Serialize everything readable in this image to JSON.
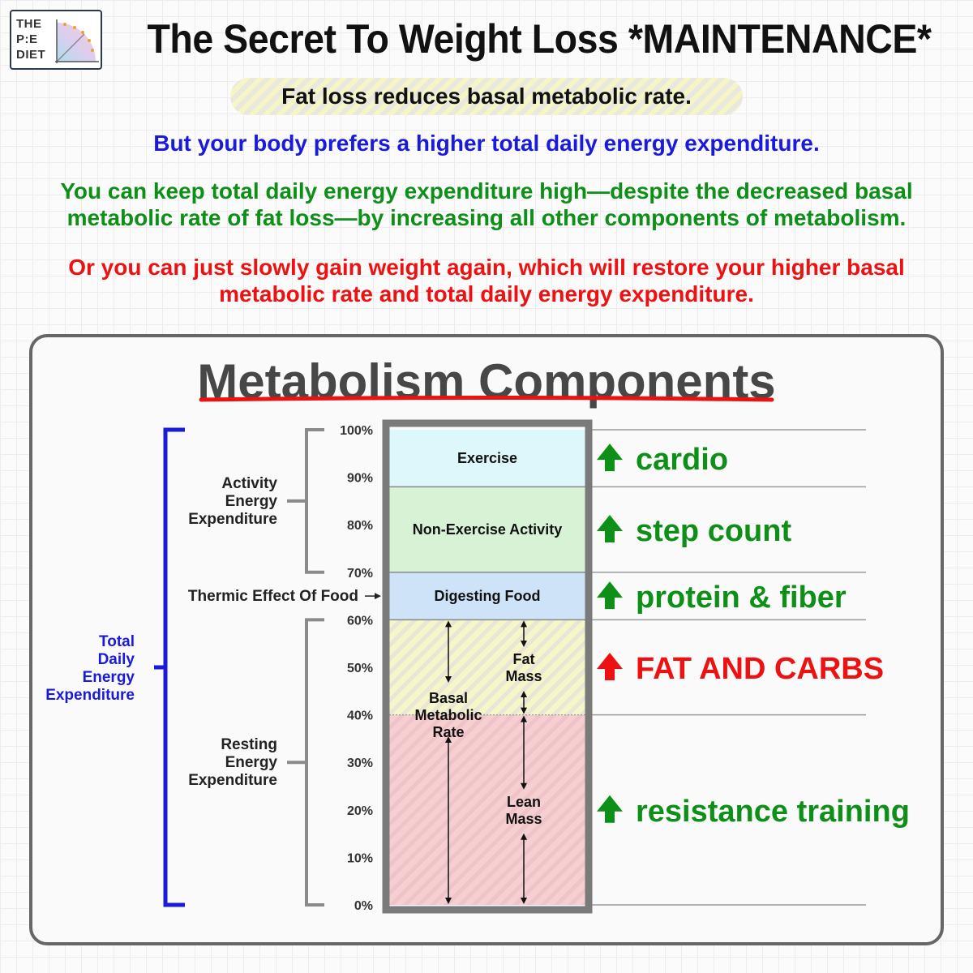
{
  "logo": {
    "line1": "THE",
    "line2": "P:E",
    "line3": "DIET"
  },
  "title": "The Secret To Weight Loss *MAINTENANCE*",
  "subtitle": "Fat loss reduces basal metabolic rate.",
  "blue_text": "But your body prefers a higher total daily energy expenditure.",
  "green_text": "You can keep total daily energy expenditure high—despite the decreased basal metabolic rate of fat loss—by increasing all other components of metabolism.",
  "red_text": "Or you can just slowly gain weight again, which will restore your higher basal metabolic rate and total daily energy expenditure.",
  "colors": {
    "blue": "#1a1adb",
    "green": "#0d8f18",
    "red": "#ee1111",
    "exercise": "#dcf8fa",
    "neat": "#d8f2d6",
    "tef": "#cfe3f8",
    "fat_mass": "#f6f5c4",
    "lean_mass": "#f6cfd0"
  },
  "panel": {
    "title": "Metabolism Components"
  },
  "axis": {
    "ticks": [
      {
        "value": 100,
        "label": "100%"
      },
      {
        "value": 90,
        "label": "90%"
      },
      {
        "value": 80,
        "label": "80%"
      },
      {
        "value": 70,
        "label": "70%"
      },
      {
        "value": 60,
        "label": "60%"
      },
      {
        "value": 50,
        "label": "50%"
      },
      {
        "value": 40,
        "label": "40%"
      },
      {
        "value": 30,
        "label": "30%"
      },
      {
        "value": 20,
        "label": "20%"
      },
      {
        "value": 10,
        "label": "10%"
      },
      {
        "value": 0,
        "label": "0%"
      }
    ]
  },
  "segments": [
    {
      "id": "exercise",
      "label": "Exercise",
      "from": 88,
      "to": 100
    },
    {
      "id": "neat",
      "label": "Non-Exercise Activity",
      "from": 70,
      "to": 88
    },
    {
      "id": "tef",
      "label": "Digesting Food",
      "from": 60,
      "to": 70
    },
    {
      "id": "fat_mass",
      "label": "Fat Mass",
      "from": 40,
      "to": 60
    },
    {
      "id": "lean_mass",
      "label": "Lean Mass",
      "from": 0,
      "to": 40
    }
  ],
  "bmr_label": "Basal Metabolic Rate",
  "groups": {
    "tdee": "Total Daily Energy Expenditure",
    "activity": "Activity Energy Expenditure",
    "resting": "Resting Energy Expenditure",
    "tef": "Thermic Effect Of Food"
  },
  "tips": [
    {
      "text": "cardio",
      "color": "green",
      "at": 94
    },
    {
      "text": "step count",
      "color": "green",
      "at": 79
    },
    {
      "text": "protein & fiber",
      "color": "green",
      "at": 65
    },
    {
      "text": "FAT AND CARBS",
      "color": "red",
      "at": 50
    },
    {
      "text": "resistance training",
      "color": "green",
      "at": 20
    }
  ]
}
